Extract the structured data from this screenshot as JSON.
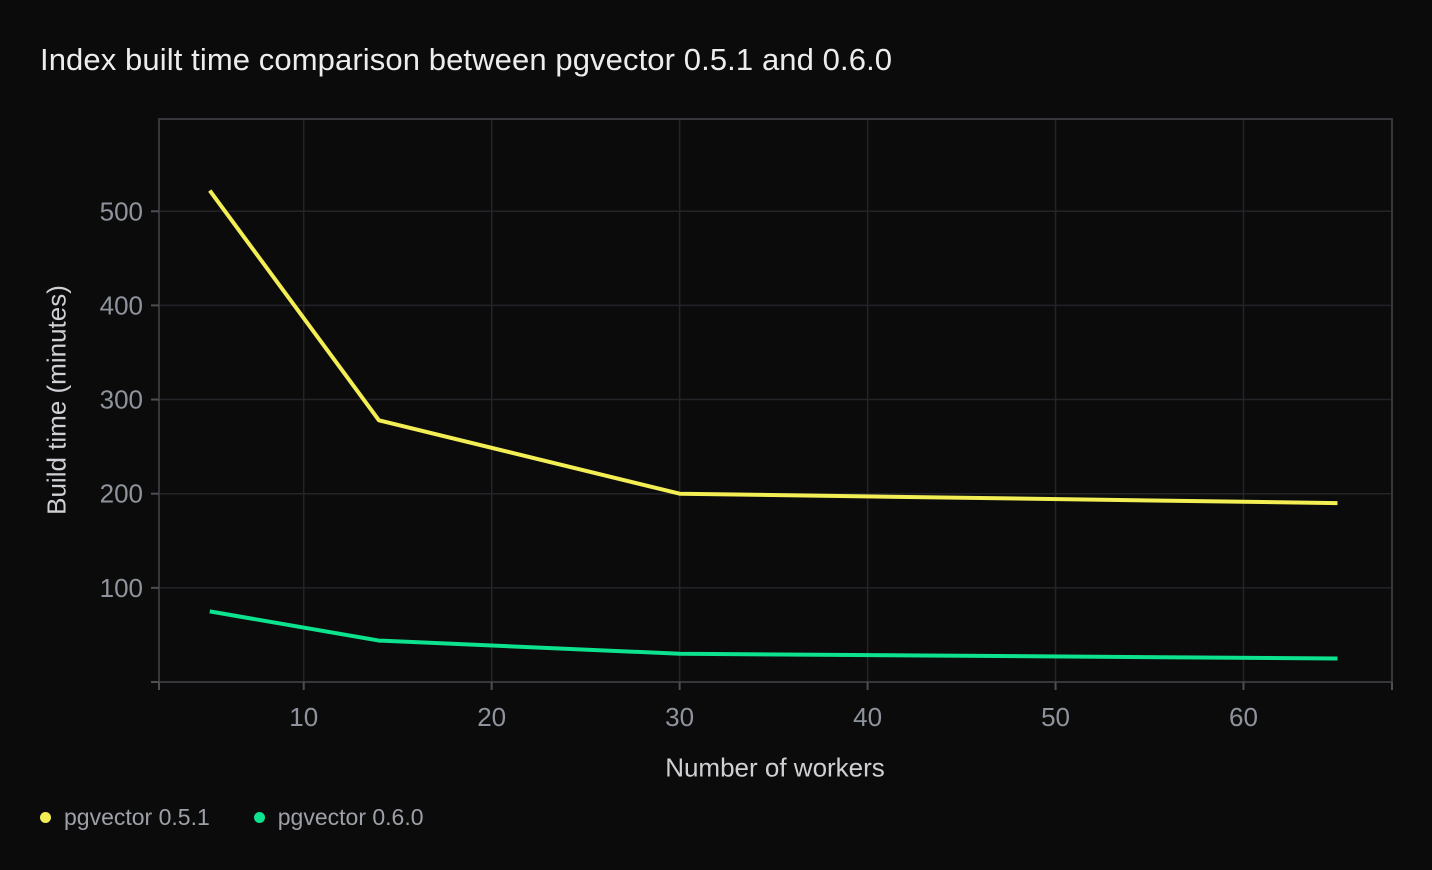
{
  "chart_data": {
    "type": "line",
    "title": "Index built time comparison between pgvector 0.5.1 and 0.6.0",
    "xlabel": "Number of workers",
    "ylabel": "Build time (minutes)",
    "x_ticks": [
      10,
      20,
      30,
      40,
      50,
      60
    ],
    "y_ticks": [
      100,
      200,
      300,
      400,
      500
    ],
    "xlim": [
      2.3,
      67.9
    ],
    "ylim": [
      0,
      598
    ],
    "grid": true,
    "legend_position": "bottom-left",
    "colors": {
      "background": "#0b0b0c",
      "gridline": "#242428",
      "plot_border": "#36363b",
      "tick_label": "#8f939c",
      "axis_title": "#cfd0d4",
      "title": "#ededee"
    },
    "series": [
      {
        "name": "pgvector 0.5.1",
        "color": "#f2ee54",
        "x": [
          5,
          14,
          30,
          65
        ],
        "y": [
          522,
          278,
          200,
          190
        ]
      },
      {
        "name": "pgvector 0.6.0",
        "color": "#0de28e",
        "x": [
          5,
          14,
          30,
          65
        ],
        "y": [
          75,
          44,
          30,
          25
        ]
      }
    ]
  }
}
